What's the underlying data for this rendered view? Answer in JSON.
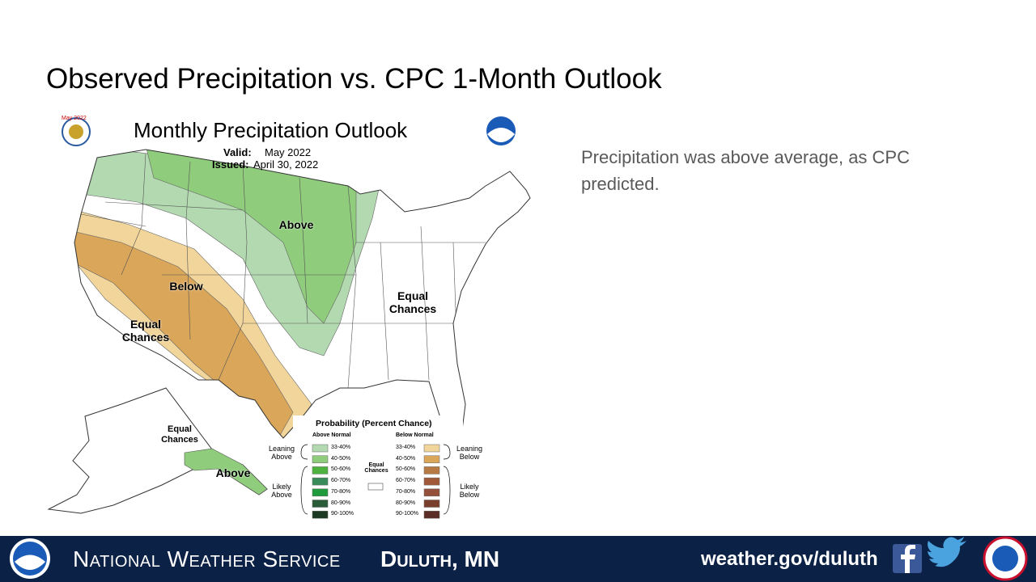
{
  "title": "Observed Precipitation vs. CPC 1-Month Outlook",
  "body_text": "Precipitation was above average, as CPC predicted.",
  "map": {
    "badge": "May 2022",
    "title": "Monthly Precipitation Outlook",
    "valid_label": "Valid:",
    "valid": "May 2022",
    "issued_label": "Issued:",
    "issued": "April 30, 2022",
    "region_labels": [
      "Above",
      "Below",
      "Equal Chances",
      "Equal Chances",
      "Equal Chances",
      "Above"
    ],
    "legend": {
      "title": "Probability (Percent Chance)",
      "above_header": "Above Normal",
      "below_header": "Below Normal",
      "equal_chances": "Equal Chances",
      "leaning_above": "Leaning Above",
      "likely_above": "Likely Above",
      "leaning_below": "Leaning Below",
      "likely_below": "Likely Below",
      "ranges": [
        "33-40%",
        "40-50%",
        "50-60%",
        "60-70%",
        "70-80%",
        "80-90%",
        "90-100%"
      ],
      "above_colors": [
        "#b3d9b0",
        "#8fcc7c",
        "#4eb23f",
        "#3a8b5a",
        "#1f9a3c",
        "#2a5c3a",
        "#1d3b22"
      ],
      "below_colors": [
        "#f1d59a",
        "#d9a65a",
        "#b87a44",
        "#a05a3a",
        "#94503a",
        "#7a3e2c",
        "#5a2e26"
      ]
    }
  },
  "footer": {
    "org": "National Weather Service",
    "office": "Duluth, MN",
    "url": "weather.gov/duluth"
  }
}
